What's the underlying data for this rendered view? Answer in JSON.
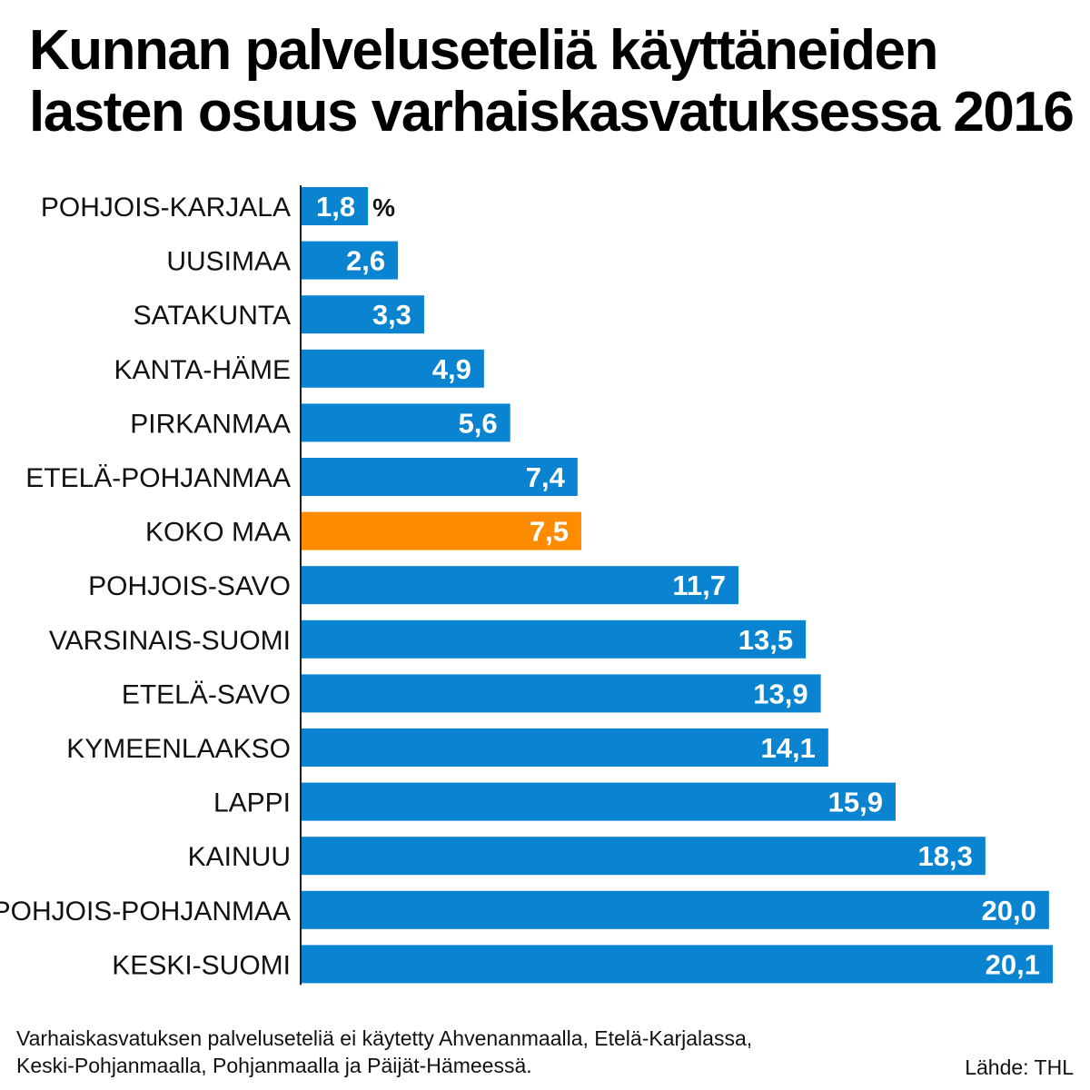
{
  "title_lines": [
    "Kunnan palveluseteliä käyttäneiden",
    "lasten osuus varhaiskasvatuksessa 2016"
  ],
  "footnote_lines": [
    "Varhaiskasvatuksen palveluseteliä ei käytetty Ahvenanmaalla, Etelä-Karjalassa,",
    "Keski-Pohjanmaalla, Pohjanmaalla ja Päijät-Hämeessä."
  ],
  "source": "Lähde: THL",
  "colors": {
    "bar": "#0a84d0",
    "highlight": "#ff8c00"
  },
  "chart_data": {
    "type": "bar",
    "orientation": "horizontal",
    "title": "Kunnan palveluseteliä käyttäneiden lasten osuus varhaiskasvatuksessa 2016",
    "unit": "%",
    "categories": [
      "POHJOIS-KARJALA",
      "UUSIMAA",
      "SATAKUNTA",
      "KANTA-HÄME",
      "PIRKANMAA",
      "ETELÄ-POHJANMAA",
      "KOKO MAA",
      "POHJOIS-SAVO",
      "VARSINAIS-SUOMI",
      "ETELÄ-SAVO",
      "KYMEENLAAKSO",
      "LAPPI",
      "KAINUU",
      "POHJOIS-POHJANMAA",
      "KESKI-SUOMI"
    ],
    "values": [
      1.8,
      2.6,
      3.3,
      4.9,
      5.6,
      7.4,
      7.5,
      11.7,
      13.5,
      13.9,
      14.1,
      15.9,
      18.3,
      20.0,
      20.1
    ],
    "value_labels": [
      "1,8",
      "2,6",
      "3,3",
      "4,9",
      "5,6",
      "7,4",
      "7,5",
      "11,7",
      "13,5",
      "13,9",
      "14,1",
      "15,9",
      "18,3",
      "20,0",
      "20,1"
    ],
    "highlight_category": "KOKO MAA",
    "xlim": [
      0,
      20.1
    ],
    "grid": false,
    "legend": "none"
  }
}
